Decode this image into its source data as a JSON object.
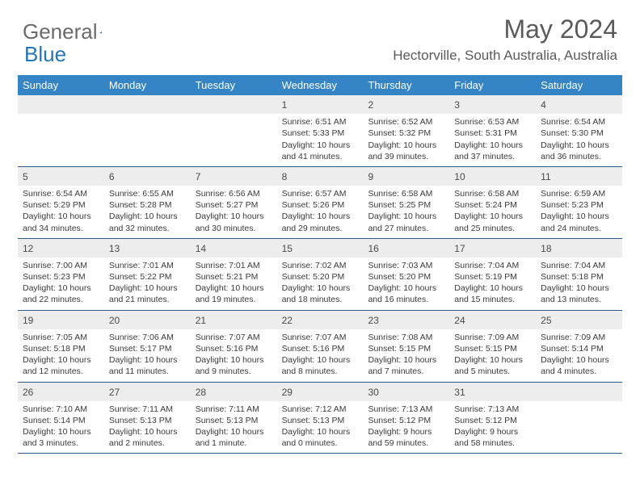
{
  "logo": {
    "left": "General",
    "right": "Blue"
  },
  "title": "May 2024",
  "location": "Hectorville, South Australia, Australia",
  "day_names": [
    "Sunday",
    "Monday",
    "Tuesday",
    "Wednesday",
    "Thursday",
    "Friday",
    "Saturday"
  ],
  "colors": {
    "header_bg": "#3585c6",
    "header_text": "#ffffff",
    "daynum_bg": "#ededed",
    "border": "#2f5d8a",
    "text": "#3a3a3a"
  },
  "weeks": [
    [
      null,
      null,
      null,
      {
        "n": "1",
        "sr": "Sunrise: 6:51 AM",
        "ss": "Sunset: 5:33 PM",
        "d1": "Daylight: 10 hours",
        "d2": "and 41 minutes."
      },
      {
        "n": "2",
        "sr": "Sunrise: 6:52 AM",
        "ss": "Sunset: 5:32 PM",
        "d1": "Daylight: 10 hours",
        "d2": "and 39 minutes."
      },
      {
        "n": "3",
        "sr": "Sunrise: 6:53 AM",
        "ss": "Sunset: 5:31 PM",
        "d1": "Daylight: 10 hours",
        "d2": "and 37 minutes."
      },
      {
        "n": "4",
        "sr": "Sunrise: 6:54 AM",
        "ss": "Sunset: 5:30 PM",
        "d1": "Daylight: 10 hours",
        "d2": "and 36 minutes."
      }
    ],
    [
      {
        "n": "5",
        "sr": "Sunrise: 6:54 AM",
        "ss": "Sunset: 5:29 PM",
        "d1": "Daylight: 10 hours",
        "d2": "and 34 minutes."
      },
      {
        "n": "6",
        "sr": "Sunrise: 6:55 AM",
        "ss": "Sunset: 5:28 PM",
        "d1": "Daylight: 10 hours",
        "d2": "and 32 minutes."
      },
      {
        "n": "7",
        "sr": "Sunrise: 6:56 AM",
        "ss": "Sunset: 5:27 PM",
        "d1": "Daylight: 10 hours",
        "d2": "and 30 minutes."
      },
      {
        "n": "8",
        "sr": "Sunrise: 6:57 AM",
        "ss": "Sunset: 5:26 PM",
        "d1": "Daylight: 10 hours",
        "d2": "and 29 minutes."
      },
      {
        "n": "9",
        "sr": "Sunrise: 6:58 AM",
        "ss": "Sunset: 5:25 PM",
        "d1": "Daylight: 10 hours",
        "d2": "and 27 minutes."
      },
      {
        "n": "10",
        "sr": "Sunrise: 6:58 AM",
        "ss": "Sunset: 5:24 PM",
        "d1": "Daylight: 10 hours",
        "d2": "and 25 minutes."
      },
      {
        "n": "11",
        "sr": "Sunrise: 6:59 AM",
        "ss": "Sunset: 5:23 PM",
        "d1": "Daylight: 10 hours",
        "d2": "and 24 minutes."
      }
    ],
    [
      {
        "n": "12",
        "sr": "Sunrise: 7:00 AM",
        "ss": "Sunset: 5:23 PM",
        "d1": "Daylight: 10 hours",
        "d2": "and 22 minutes."
      },
      {
        "n": "13",
        "sr": "Sunrise: 7:01 AM",
        "ss": "Sunset: 5:22 PM",
        "d1": "Daylight: 10 hours",
        "d2": "and 21 minutes."
      },
      {
        "n": "14",
        "sr": "Sunrise: 7:01 AM",
        "ss": "Sunset: 5:21 PM",
        "d1": "Daylight: 10 hours",
        "d2": "and 19 minutes."
      },
      {
        "n": "15",
        "sr": "Sunrise: 7:02 AM",
        "ss": "Sunset: 5:20 PM",
        "d1": "Daylight: 10 hours",
        "d2": "and 18 minutes."
      },
      {
        "n": "16",
        "sr": "Sunrise: 7:03 AM",
        "ss": "Sunset: 5:20 PM",
        "d1": "Daylight: 10 hours",
        "d2": "and 16 minutes."
      },
      {
        "n": "17",
        "sr": "Sunrise: 7:04 AM",
        "ss": "Sunset: 5:19 PM",
        "d1": "Daylight: 10 hours",
        "d2": "and 15 minutes."
      },
      {
        "n": "18",
        "sr": "Sunrise: 7:04 AM",
        "ss": "Sunset: 5:18 PM",
        "d1": "Daylight: 10 hours",
        "d2": "and 13 minutes."
      }
    ],
    [
      {
        "n": "19",
        "sr": "Sunrise: 7:05 AM",
        "ss": "Sunset: 5:18 PM",
        "d1": "Daylight: 10 hours",
        "d2": "and 12 minutes."
      },
      {
        "n": "20",
        "sr": "Sunrise: 7:06 AM",
        "ss": "Sunset: 5:17 PM",
        "d1": "Daylight: 10 hours",
        "d2": "and 11 minutes."
      },
      {
        "n": "21",
        "sr": "Sunrise: 7:07 AM",
        "ss": "Sunset: 5:16 PM",
        "d1": "Daylight: 10 hours",
        "d2": "and 9 minutes."
      },
      {
        "n": "22",
        "sr": "Sunrise: 7:07 AM",
        "ss": "Sunset: 5:16 PM",
        "d1": "Daylight: 10 hours",
        "d2": "and 8 minutes."
      },
      {
        "n": "23",
        "sr": "Sunrise: 7:08 AM",
        "ss": "Sunset: 5:15 PM",
        "d1": "Daylight: 10 hours",
        "d2": "and 7 minutes."
      },
      {
        "n": "24",
        "sr": "Sunrise: 7:09 AM",
        "ss": "Sunset: 5:15 PM",
        "d1": "Daylight: 10 hours",
        "d2": "and 5 minutes."
      },
      {
        "n": "25",
        "sr": "Sunrise: 7:09 AM",
        "ss": "Sunset: 5:14 PM",
        "d1": "Daylight: 10 hours",
        "d2": "and 4 minutes."
      }
    ],
    [
      {
        "n": "26",
        "sr": "Sunrise: 7:10 AM",
        "ss": "Sunset: 5:14 PM",
        "d1": "Daylight: 10 hours",
        "d2": "and 3 minutes."
      },
      {
        "n": "27",
        "sr": "Sunrise: 7:11 AM",
        "ss": "Sunset: 5:13 PM",
        "d1": "Daylight: 10 hours",
        "d2": "and 2 minutes."
      },
      {
        "n": "28",
        "sr": "Sunrise: 7:11 AM",
        "ss": "Sunset: 5:13 PM",
        "d1": "Daylight: 10 hours",
        "d2": "and 1 minute."
      },
      {
        "n": "29",
        "sr": "Sunrise: 7:12 AM",
        "ss": "Sunset: 5:13 PM",
        "d1": "Daylight: 10 hours",
        "d2": "and 0 minutes."
      },
      {
        "n": "30",
        "sr": "Sunrise: 7:13 AM",
        "ss": "Sunset: 5:12 PM",
        "d1": "Daylight: 9 hours",
        "d2": "and 59 minutes."
      },
      {
        "n": "31",
        "sr": "Sunrise: 7:13 AM",
        "ss": "Sunset: 5:12 PM",
        "d1": "Daylight: 9 hours",
        "d2": "and 58 minutes."
      },
      null
    ]
  ]
}
